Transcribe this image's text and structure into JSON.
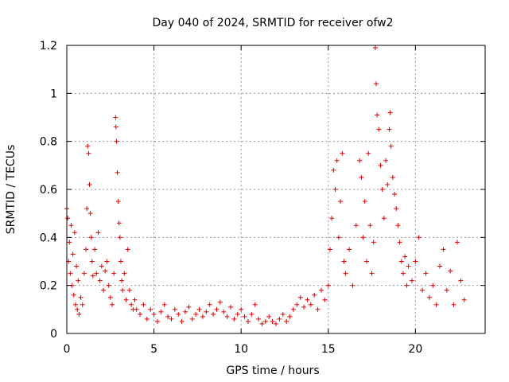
{
  "chart_data": {
    "type": "scatter",
    "title": "Day 040 of 2024, SRMTID for receiver ofw2",
    "xlabel": "GPS time / hours",
    "ylabel": "SRMTID / TECUs",
    "xlim": [
      0,
      24
    ],
    "ylim": [
      0,
      1.2
    ],
    "xticks": [
      0,
      5,
      10,
      15,
      20
    ],
    "yticks": [
      0,
      0.2,
      0.4,
      0.6,
      0.8,
      1,
      1.2
    ],
    "x_tick_labels": [
      "0",
      "5",
      "10",
      "15",
      "20"
    ],
    "y_tick_labels": [
      "0",
      "0.2",
      "0.4",
      "0.6",
      "0.8",
      "1",
      "1.2"
    ],
    "grid": true,
    "marker": "+",
    "color": "#e00000",
    "series": [
      {
        "name": "SRMTID",
        "points": [
          [
            0.0,
            0.52
          ],
          [
            0.05,
            0.48
          ],
          [
            0.1,
            0.3
          ],
          [
            0.15,
            0.38
          ],
          [
            0.2,
            0.25
          ],
          [
            0.25,
            0.45
          ],
          [
            0.3,
            0.2
          ],
          [
            0.35,
            0.33
          ],
          [
            0.4,
            0.16
          ],
          [
            0.45,
            0.42
          ],
          [
            0.5,
            0.12
          ],
          [
            0.55,
            0.28
          ],
          [
            0.6,
            0.1
          ],
          [
            0.65,
            0.22
          ],
          [
            0.7,
            0.08
          ],
          [
            0.8,
            0.15
          ],
          [
            0.9,
            0.12
          ],
          [
            1.0,
            0.25
          ],
          [
            1.1,
            0.35
          ],
          [
            1.15,
            0.52
          ],
          [
            1.2,
            0.78
          ],
          [
            1.25,
            0.75
          ],
          [
            1.3,
            0.62
          ],
          [
            1.35,
            0.5
          ],
          [
            1.4,
            0.4
          ],
          [
            1.45,
            0.3
          ],
          [
            1.5,
            0.24
          ],
          [
            1.6,
            0.35
          ],
          [
            1.7,
            0.25
          ],
          [
            1.8,
            0.42
          ],
          [
            1.9,
            0.22
          ],
          [
            2.0,
            0.28
          ],
          [
            2.1,
            0.18
          ],
          [
            2.2,
            0.26
          ],
          [
            2.3,
            0.3
          ],
          [
            2.4,
            0.2
          ],
          [
            2.5,
            0.15
          ],
          [
            2.6,
            0.12
          ],
          [
            2.7,
            0.25
          ],
          [
            2.8,
            0.9
          ],
          [
            2.82,
            0.86
          ],
          [
            2.85,
            0.8
          ],
          [
            2.9,
            0.67
          ],
          [
            2.95,
            0.55
          ],
          [
            3.0,
            0.46
          ],
          [
            3.05,
            0.4
          ],
          [
            3.1,
            0.3
          ],
          [
            3.15,
            0.22
          ],
          [
            3.2,
            0.18
          ],
          [
            3.3,
            0.25
          ],
          [
            3.4,
            0.14
          ],
          [
            3.5,
            0.35
          ],
          [
            3.6,
            0.18
          ],
          [
            3.7,
            0.12
          ],
          [
            3.8,
            0.1
          ],
          [
            3.9,
            0.14
          ],
          [
            4.0,
            0.1
          ],
          [
            4.2,
            0.08
          ],
          [
            4.4,
            0.12
          ],
          [
            4.6,
            0.06
          ],
          [
            4.8,
            0.1
          ],
          [
            5.0,
            0.08
          ],
          [
            5.2,
            0.05
          ],
          [
            5.4,
            0.09
          ],
          [
            5.6,
            0.12
          ],
          [
            5.8,
            0.07
          ],
          [
            6.0,
            0.06
          ],
          [
            6.2,
            0.1
          ],
          [
            6.4,
            0.08
          ],
          [
            6.6,
            0.05
          ],
          [
            6.8,
            0.09
          ],
          [
            7.0,
            0.11
          ],
          [
            7.2,
            0.06
          ],
          [
            7.4,
            0.08
          ],
          [
            7.6,
            0.1
          ],
          [
            7.8,
            0.07
          ],
          [
            8.0,
            0.09
          ],
          [
            8.2,
            0.12
          ],
          [
            8.4,
            0.08
          ],
          [
            8.6,
            0.1
          ],
          [
            8.8,
            0.13
          ],
          [
            9.0,
            0.09
          ],
          [
            9.2,
            0.07
          ],
          [
            9.4,
            0.11
          ],
          [
            9.6,
            0.06
          ],
          [
            9.8,
            0.08
          ],
          [
            10.0,
            0.1
          ],
          [
            10.2,
            0.07
          ],
          [
            10.4,
            0.05
          ],
          [
            10.6,
            0.08
          ],
          [
            10.8,
            0.12
          ],
          [
            11.0,
            0.06
          ],
          [
            11.2,
            0.04
          ],
          [
            11.4,
            0.05
          ],
          [
            11.6,
            0.07
          ],
          [
            11.8,
            0.05
          ],
          [
            12.0,
            0.04
          ],
          [
            12.2,
            0.06
          ],
          [
            12.4,
            0.08
          ],
          [
            12.6,
            0.05
          ],
          [
            12.8,
            0.07
          ],
          [
            13.0,
            0.1
          ],
          [
            13.2,
            0.12
          ],
          [
            13.4,
            0.15
          ],
          [
            13.6,
            0.11
          ],
          [
            13.8,
            0.14
          ],
          [
            14.0,
            0.12
          ],
          [
            14.2,
            0.16
          ],
          [
            14.4,
            0.1
          ],
          [
            14.6,
            0.18
          ],
          [
            14.8,
            0.14
          ],
          [
            15.0,
            0.2
          ],
          [
            15.1,
            0.35
          ],
          [
            15.2,
            0.48
          ],
          [
            15.3,
            0.68
          ],
          [
            15.4,
            0.6
          ],
          [
            15.5,
            0.72
          ],
          [
            15.6,
            0.4
          ],
          [
            15.7,
            0.55
          ],
          [
            15.8,
            0.75
          ],
          [
            15.9,
            0.3
          ],
          [
            16.0,
            0.25
          ],
          [
            16.2,
            0.35
          ],
          [
            16.4,
            0.2
          ],
          [
            16.6,
            0.45
          ],
          [
            16.8,
            0.72
          ],
          [
            16.9,
            0.65
          ],
          [
            17.0,
            0.4
          ],
          [
            17.1,
            0.55
          ],
          [
            17.2,
            0.3
          ],
          [
            17.3,
            0.75
          ],
          [
            17.4,
            0.45
          ],
          [
            17.5,
            0.25
          ],
          [
            17.6,
            0.38
          ],
          [
            17.7,
            1.19
          ],
          [
            17.75,
            1.04
          ],
          [
            17.8,
            0.91
          ],
          [
            17.9,
            0.85
          ],
          [
            18.0,
            0.7
          ],
          [
            18.1,
            0.6
          ],
          [
            18.2,
            0.48
          ],
          [
            18.3,
            0.72
          ],
          [
            18.4,
            0.62
          ],
          [
            18.5,
            0.85
          ],
          [
            18.55,
            0.92
          ],
          [
            18.6,
            0.78
          ],
          [
            18.7,
            0.65
          ],
          [
            18.8,
            0.58
          ],
          [
            18.9,
            0.52
          ],
          [
            19.0,
            0.45
          ],
          [
            19.1,
            0.38
          ],
          [
            19.2,
            0.3
          ],
          [
            19.3,
            0.25
          ],
          [
            19.4,
            0.32
          ],
          [
            19.5,
            0.2
          ],
          [
            19.6,
            0.28
          ],
          [
            19.8,
            0.22
          ],
          [
            20.0,
            0.3
          ],
          [
            20.2,
            0.4
          ],
          [
            20.4,
            0.18
          ],
          [
            20.6,
            0.25
          ],
          [
            20.8,
            0.15
          ],
          [
            21.0,
            0.2
          ],
          [
            21.2,
            0.12
          ],
          [
            21.4,
            0.28
          ],
          [
            21.6,
            0.35
          ],
          [
            21.8,
            0.18
          ],
          [
            22.0,
            0.26
          ],
          [
            22.2,
            0.12
          ],
          [
            22.4,
            0.38
          ],
          [
            22.6,
            0.22
          ],
          [
            22.8,
            0.14
          ]
        ]
      }
    ]
  }
}
